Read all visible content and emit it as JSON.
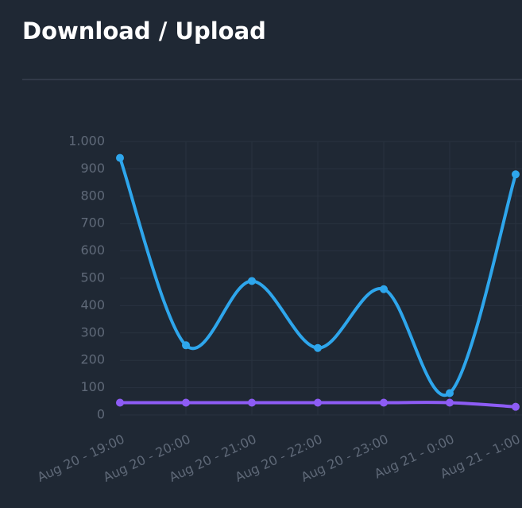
{
  "chart_data": {
    "type": "line",
    "title": "Download / Upload",
    "categories": [
      "Aug 20 - 19:00",
      "Aug 20 - 20:00",
      "Aug 20 - 21:00",
      "Aug 20 - 22:00",
      "Aug 20 - 23:00",
      "Aug 21 - 0:00",
      "Aug 21 - 1:00"
    ],
    "series": [
      {
        "color": "#2ea6ec",
        "values": [
          940,
          255,
          490,
          245,
          460,
          80,
          880
        ]
      },
      {
        "color": "#8d5cf5",
        "values": [
          45,
          45,
          45,
          45,
          45,
          45,
          30
        ]
      }
    ],
    "ylim": [
      0,
      1000
    ],
    "yticks": [
      0,
      100,
      200,
      300,
      400,
      500,
      600,
      700,
      800,
      900,
      {
        "value": 1000,
        "label": "1.000"
      }
    ],
    "grid": true,
    "smooth": true
  }
}
